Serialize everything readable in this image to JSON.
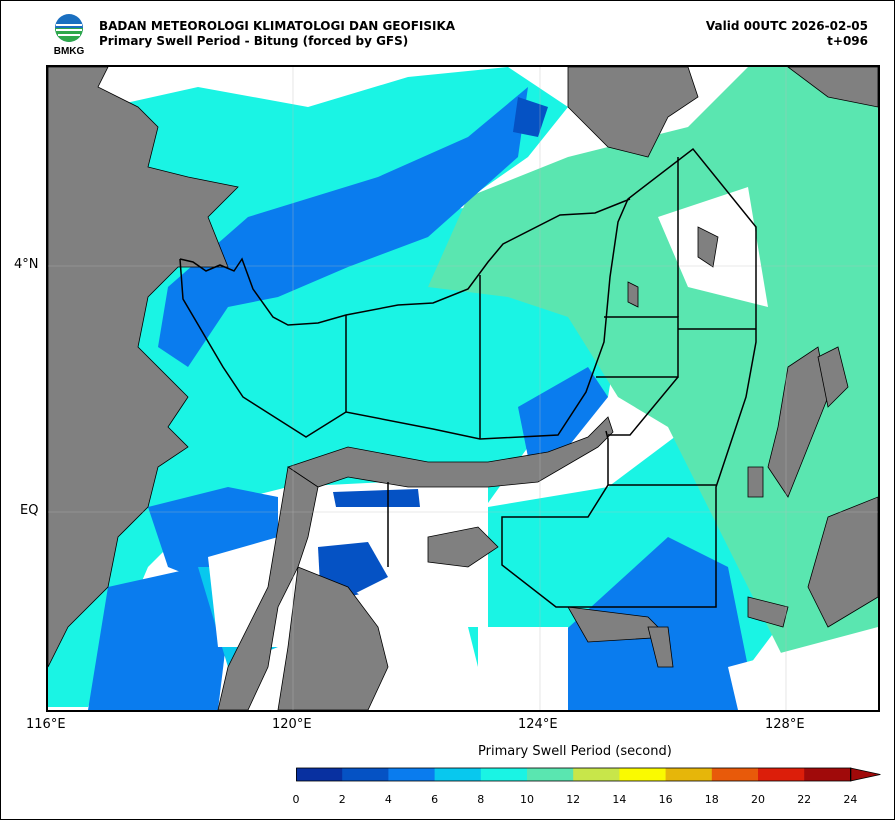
{
  "header": {
    "agency": "BADAN METEOROLOGI KLIMATOLOGI DAN GEOFISIKA",
    "product": "Primary Swell Period - Bitung (forced by GFS)",
    "valid": "Valid 00UTC 2026-02-05",
    "lead": "t+096",
    "logo_text": "BMKG"
  },
  "axes": {
    "lon_ticks": [
      "116°E",
      "120°E",
      "124°E",
      "128°E"
    ],
    "lat_ticks": [
      "4°N",
      "EQ"
    ]
  },
  "colorbar": {
    "title": "Primary Swell Period (second)",
    "tick_labels": [
      "0",
      "2",
      "4",
      "6",
      "8",
      "10",
      "12",
      "14",
      "16",
      "18",
      "20",
      "22",
      "24"
    ],
    "colors": [
      "#0830a0",
      "#0552c4",
      "#0a7cee",
      "#08c8ee",
      "#1af4e4",
      "#5ae6b0",
      "#c8e64a",
      "#fafa00",
      "#e6b60a",
      "#e85a0a",
      "#dc1e0a",
      "#a00a0a"
    ]
  },
  "map": {
    "land_color": "#808080",
    "ocean_color": "#ffffff"
  }
}
